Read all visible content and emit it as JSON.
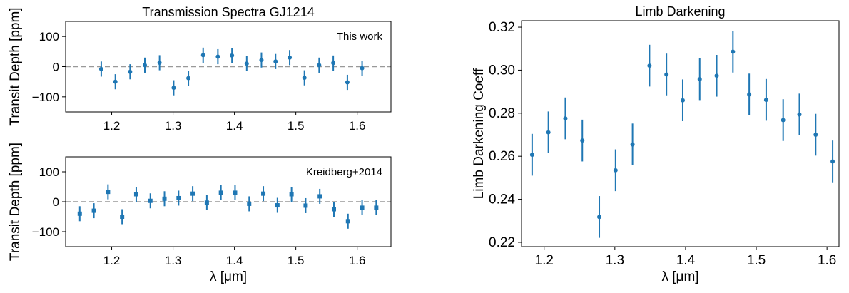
{
  "chart_data": [
    {
      "type": "scatter",
      "title": "Transmission Spectra GJ1214",
      "ylabel": "Transit Depth [ppm]",
      "xlabel": "",
      "annotation": "This work",
      "xlim": [
        1.125,
        1.655
      ],
      "ylim": [
        -150,
        150
      ],
      "xticks": [
        "1.2",
        "1.3",
        "1.4",
        "1.5",
        "1.6"
      ],
      "yticks": [
        "100",
        "0",
        "−100"
      ],
      "reference_line": {
        "y": 0,
        "style": "dashed",
        "color": "#999999"
      },
      "marker_color": "#1f77b4",
      "error": 25,
      "x": [
        1.183,
        1.206,
        1.23,
        1.254,
        1.278,
        1.301,
        1.325,
        1.349,
        1.373,
        1.396,
        1.42,
        1.444,
        1.467,
        1.49,
        1.514,
        1.538,
        1.561,
        1.584,
        1.608
      ],
      "y": [
        -8,
        -50,
        -17,
        5,
        13,
        -70,
        -38,
        38,
        33,
        37,
        10,
        22,
        17,
        30,
        -37,
        5,
        12,
        -52,
        -5
      ]
    },
    {
      "type": "scatter",
      "title": "",
      "ylabel": "Transit Depth [ppm]",
      "xlabel": "λ [μm]",
      "annotation": "Kreidberg+2014",
      "xlim": [
        1.125,
        1.655
      ],
      "ylim": [
        -150,
        150
      ],
      "xticks": [
        "1.2",
        "1.3",
        "1.4",
        "1.5",
        "1.6"
      ],
      "yticks": [
        "100",
        "0",
        "−100"
      ],
      "reference_line": {
        "y": 0,
        "style": "dashed",
        "color": "#999999"
      },
      "marker_color": "#1f77b4",
      "error": 25,
      "x": [
        1.148,
        1.171,
        1.194,
        1.217,
        1.24,
        1.263,
        1.286,
        1.309,
        1.332,
        1.355,
        1.378,
        1.401,
        1.424,
        1.447,
        1.47,
        1.493,
        1.516,
        1.539,
        1.562,
        1.585,
        1.608,
        1.631
      ],
      "y": [
        -40,
        -30,
        33,
        -50,
        25,
        3,
        10,
        12,
        27,
        -3,
        30,
        30,
        -7,
        27,
        -12,
        25,
        -13,
        18,
        -25,
        -65,
        -20,
        -20
      ]
    },
    {
      "type": "scatter",
      "title": "Limb Darkening",
      "ylabel": "Limb Darkening Coeff",
      "xlabel": "λ [μm]",
      "xlim": [
        1.168,
        1.617
      ],
      "ylim": [
        0.218,
        0.323
      ],
      "xticks": [
        "1.2",
        "1.3",
        "1.4",
        "1.5",
        "1.6"
      ],
      "yticks": [
        "0.32",
        "0.30",
        "0.28",
        "0.26",
        "0.24",
        "0.22"
      ],
      "marker_color": "#1f77b4",
      "error": 0.0097,
      "x": [
        1.183,
        1.206,
        1.23,
        1.254,
        1.278,
        1.301,
        1.325,
        1.349,
        1.373,
        1.396,
        1.42,
        1.444,
        1.467,
        1.49,
        1.514,
        1.538,
        1.561,
        1.584,
        1.608
      ],
      "y": [
        0.2607,
        0.2711,
        0.2776,
        0.2673,
        0.2318,
        0.2535,
        0.2655,
        0.3021,
        0.298,
        0.286,
        0.2958,
        0.2974,
        0.3086,
        0.2887,
        0.2862,
        0.2768,
        0.2794,
        0.27,
        0.2576
      ]
    }
  ]
}
